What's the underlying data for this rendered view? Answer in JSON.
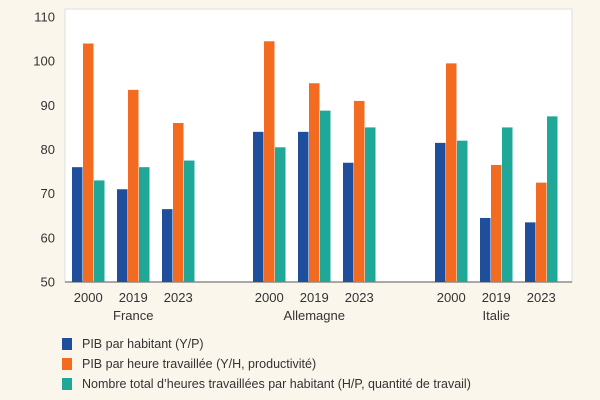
{
  "chart_data": {
    "type": "bar",
    "y_axis": {
      "min": 50,
      "max": 110,
      "ticks": [
        50,
        60,
        70,
        80,
        90,
        100,
        110
      ]
    },
    "grid": false,
    "groups": [
      {
        "label": "France",
        "categories": [
          "2000",
          "2019",
          "2023"
        ],
        "values": {
          "Y/P": [
            76,
            71,
            66.5
          ],
          "Y/H": [
            104,
            93.5,
            86
          ],
          "H/P": [
            73,
            76,
            77.5
          ]
        }
      },
      {
        "label": "Allemagne",
        "categories": [
          "2000",
          "2019",
          "2023"
        ],
        "values": {
          "Y/P": [
            84,
            84,
            77
          ],
          "Y/H": [
            104.5,
            95,
            91
          ],
          "H/P": [
            80.5,
            88.8,
            85
          ]
        }
      },
      {
        "label": "Italie",
        "categories": [
          "2000",
          "2019",
          "2023"
        ],
        "values": {
          "Y/P": [
            81.5,
            64.5,
            63.5
          ],
          "Y/H": [
            99.5,
            76.5,
            72.5
          ],
          "H/P": [
            82,
            85,
            87.5
          ]
        }
      }
    ],
    "series": [
      {
        "key": "Y/P",
        "name": "PIB par habitant (Y/P)",
        "color": "#1f4e9c"
      },
      {
        "key": "Y/H",
        "name": "PIB par heure travaillée (Y/H, productivité)",
        "color": "#f26b21"
      },
      {
        "key": "H/P",
        "name": "Nombre total d’heures travaillées par habitant (H/P, quantité de travail)",
        "color": "#1fa898"
      }
    ],
    "legend_position": "bottom-left"
  }
}
